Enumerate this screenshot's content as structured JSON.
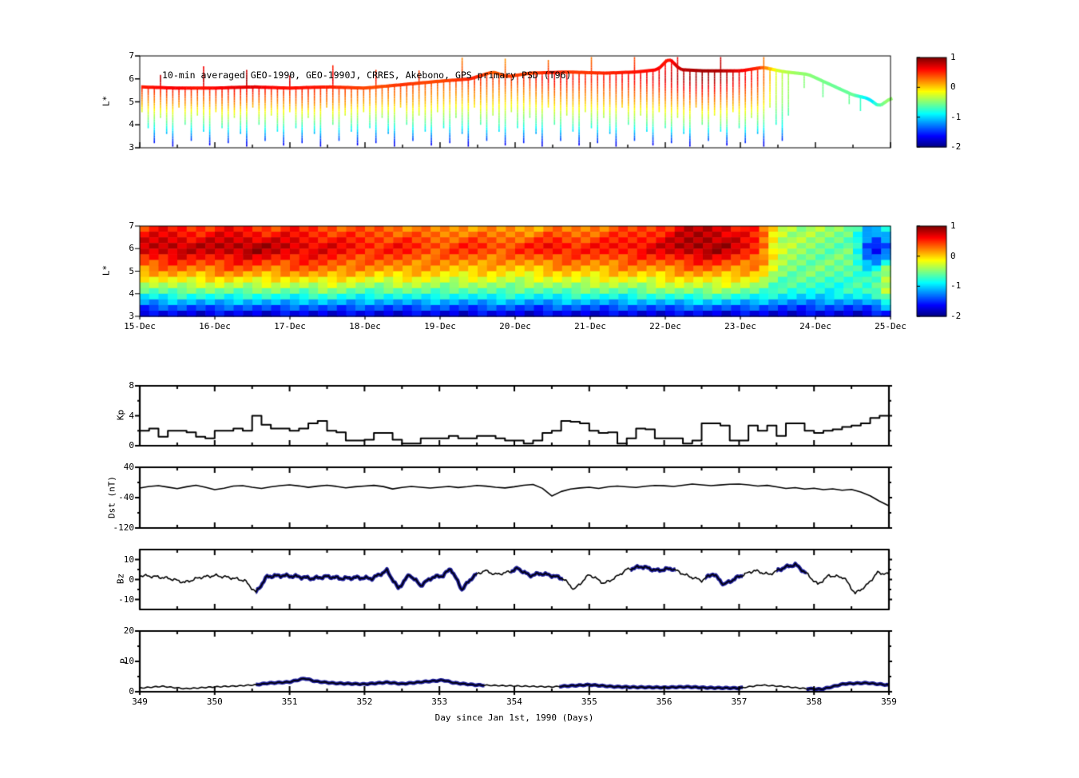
{
  "figure": {
    "background": "#ffffff"
  },
  "colorbar": {
    "vmin": -2,
    "vmax": 1,
    "ticks": [
      1,
      0,
      -1,
      -2
    ]
  },
  "xaxis": {
    "xlim": [
      349,
      359
    ],
    "ticks": [
      349,
      350,
      351,
      352,
      353,
      354,
      355,
      356,
      357,
      358,
      359
    ],
    "label": "Day since Jan 1st, 1990 (Days)"
  },
  "chart_data": [
    {
      "type": "scatter",
      "id": "psd_scatter",
      "title": "10-min averaged GEO-1990, GEO-1990J, CRRES, Akebono, GPS  primary PSD (T96)",
      "ylabel": "L*",
      "ylim": [
        3,
        7
      ],
      "yticks": [
        7,
        6,
        5,
        4,
        3
      ],
      "band": [
        [
          349,
          5.65
        ],
        [
          349.5,
          5.6
        ],
        [
          350,
          5.6
        ],
        [
          350.5,
          5.65
        ],
        [
          351,
          5.6
        ],
        [
          351.5,
          5.65
        ],
        [
          352,
          5.6
        ],
        [
          352.5,
          5.75
        ],
        [
          353,
          5.9
        ],
        [
          353.4,
          6.0
        ],
        [
          353.7,
          6.3
        ],
        [
          353.9,
          6.1
        ],
        [
          354.2,
          6.25
        ],
        [
          354.7,
          6.3
        ],
        [
          355.2,
          6.25
        ],
        [
          355.6,
          6.3
        ],
        [
          355.9,
          6.4
        ],
        [
          356.05,
          6.9
        ],
        [
          356.2,
          6.4
        ],
        [
          356.5,
          6.35
        ],
        [
          357,
          6.35
        ],
        [
          357.3,
          6.5
        ],
        [
          357.6,
          6.3
        ],
        [
          357.9,
          6.2
        ],
        [
          358.1,
          5.9
        ],
        [
          358.3,
          5.6
        ],
        [
          358.5,
          5.3
        ],
        [
          358.7,
          5.15
        ],
        [
          358.85,
          4.8
        ],
        [
          359,
          5.15
        ]
      ],
      "spike_start": 349.03,
      "spike_step": 0.082,
      "spike_end": 357.65,
      "depth_cycle": [
        4.55,
        3.85,
        3.2,
        4.3,
        3.6,
        3.05,
        4.75,
        4.0,
        3.3,
        4.4,
        3.7,
        3.1
      ],
      "up_cycle": [
        0.55,
        0.95,
        0.75
      ],
      "extra_spikes": [
        [
          357.85,
          5.6
        ],
        [
          358.1,
          5.2
        ],
        [
          358.45,
          4.9
        ],
        [
          358.6,
          4.6
        ]
      ]
    },
    {
      "type": "heatmap",
      "id": "psd_heatmap",
      "ylabel": "L*",
      "ylim": [
        3,
        7
      ],
      "yticks": [
        7,
        6,
        5,
        4,
        3
      ],
      "xticklabels": [
        "15-Dec",
        "16-Dec",
        "17-Dec",
        "18-Dec",
        "19-Dec",
        "20-Dec",
        "21-Dec",
        "22-Dec",
        "23-Dec",
        "24-Dec",
        "25-Dec"
      ],
      "t0": 349,
      "dt": 0.25,
      "anchor_L": [
        7,
        6,
        5,
        4,
        3
      ],
      "anchors": [
        [
          0.45,
          0.75,
          0.15,
          -0.75,
          -1.85
        ],
        [
          0.55,
          0.85,
          0.2,
          -0.7,
          -1.85
        ],
        [
          0.5,
          0.9,
          0.25,
          -0.65,
          -1.8
        ],
        [
          0.45,
          0.8,
          0.2,
          -0.7,
          -1.85
        ],
        [
          0.5,
          0.85,
          0.25,
          -0.6,
          -1.8
        ],
        [
          0.55,
          0.9,
          0.3,
          -0.65,
          -1.85
        ],
        [
          0.45,
          0.95,
          0.25,
          -0.7,
          -1.8
        ],
        [
          0.4,
          0.85,
          0.2,
          -0.6,
          -1.85
        ],
        [
          0.5,
          0.8,
          0.25,
          -0.65,
          -1.8
        ],
        [
          0.45,
          0.75,
          0.3,
          -0.7,
          -1.85
        ],
        [
          0.4,
          0.7,
          0.25,
          -0.6,
          -1.8
        ],
        [
          0.35,
          0.65,
          0.2,
          -0.65,
          -1.85
        ],
        [
          0.3,
          0.6,
          0.15,
          -0.7,
          -1.8
        ],
        [
          0.35,
          0.55,
          0.1,
          -0.75,
          -1.85
        ],
        [
          0.25,
          0.6,
          0.15,
          -0.7,
          -1.8
        ],
        [
          0.2,
          0.5,
          0.1,
          -0.65,
          -1.85
        ],
        [
          0.15,
          0.45,
          0.05,
          -0.7,
          -1.8
        ],
        [
          0.2,
          0.5,
          0,
          -0.75,
          -1.85
        ],
        [
          0.15,
          0.55,
          0.05,
          -0.7,
          -1.8
        ],
        [
          0.1,
          0.45,
          0,
          -0.65,
          -1.85
        ],
        [
          0.15,
          0.5,
          -0.05,
          -0.7,
          -1.8
        ],
        [
          0.1,
          0.55,
          0,
          -0.75,
          -1.85
        ],
        [
          0.2,
          0.7,
          0.05,
          -0.7,
          -1.8
        ],
        [
          0.15,
          0.6,
          0.1,
          -0.65,
          -1.85
        ],
        [
          0.25,
          0.55,
          0.05,
          -0.7,
          -1.8
        ],
        [
          0.3,
          0.6,
          0.1,
          -0.65,
          -1.85
        ],
        [
          0.35,
          0.65,
          0.15,
          -0.7,
          -1.8
        ],
        [
          0.4,
          0.7,
          0.1,
          -0.65,
          -1.85
        ],
        [
          0.5,
          0.75,
          0.15,
          -0.6,
          -1.8
        ],
        [
          0.7,
          0.9,
          0.2,
          -0.55,
          -1.85
        ],
        [
          0.8,
          0.95,
          0.25,
          -0.6,
          -1.8
        ],
        [
          0.75,
          0.9,
          0.2,
          -0.55,
          -1.85
        ],
        [
          0.6,
          0.7,
          0.15,
          -0.6,
          -1.8
        ],
        [
          0.4,
          0.55,
          0.1,
          -0.65,
          -1.85
        ],
        [
          -0.2,
          -0.3,
          -0.4,
          -0.8,
          -1.85
        ],
        [
          -0.35,
          -0.45,
          -0.5,
          -0.85,
          -1.8
        ],
        [
          -0.4,
          -0.5,
          -0.55,
          -0.8,
          -1.85
        ],
        [
          -0.45,
          -0.55,
          -0.6,
          -0.85,
          -1.8
        ],
        [
          -0.5,
          -0.6,
          -0.55,
          -0.8,
          -1.85
        ],
        [
          -1.1,
          -1.8,
          -0.9,
          -0.7,
          -1.8
        ],
        [
          -0.8,
          -1.3,
          -0.3,
          -0.15,
          -1.7
        ]
      ]
    },
    {
      "type": "line",
      "id": "kp",
      "ylabel": "Kp",
      "ylim": [
        0,
        8
      ],
      "yticks": [
        8,
        4,
        0
      ],
      "yminor": [
        6,
        2
      ],
      "step": true,
      "t0": 349,
      "dt": 0.125,
      "values": [
        2.0,
        2.3,
        1.2,
        2.0,
        2.0,
        1.8,
        1.2,
        1.0,
        2.0,
        2.0,
        2.3,
        2.0,
        4.0,
        2.8,
        2.3,
        2.3,
        2.0,
        2.3,
        3.0,
        3.3,
        2.0,
        1.8,
        0.7,
        0.7,
        0.8,
        1.7,
        1.7,
        0.8,
        0.3,
        0.3,
        1.0,
        1.0,
        1.0,
        1.3,
        1.0,
        1.0,
        1.3,
        1.3,
        1.0,
        0.7,
        0.7,
        0.3,
        0.7,
        1.7,
        2.0,
        3.3,
        3.2,
        3.0,
        2.0,
        1.7,
        1.8,
        0.3,
        1.0,
        2.3,
        2.2,
        1.0,
        1.0,
        1.0,
        0.3,
        0.7,
        3.0,
        3.0,
        2.7,
        0.7,
        0.7,
        2.7,
        2.0,
        2.7,
        1.3,
        3.0,
        3.0,
        2.0,
        1.7,
        2.0,
        2.2,
        2.5,
        2.7,
        3.0,
        3.7,
        4.0
      ]
    },
    {
      "type": "line",
      "id": "dst",
      "ylabel": "Dst (nT)",
      "ylim": [
        -120,
        40
      ],
      "yticks": [
        40,
        -40,
        -120
      ],
      "yminor": [
        0,
        -80
      ],
      "t0": 349,
      "dt": 0.125,
      "values": [
        -15,
        -11,
        -9,
        -13,
        -17,
        -12,
        -8,
        -13,
        -19,
        -15,
        -9,
        -8,
        -12,
        -15,
        -11,
        -8,
        -6,
        -9,
        -13,
        -10,
        -8,
        -11,
        -15,
        -12,
        -10,
        -8,
        -11,
        -17,
        -13,
        -10,
        -12,
        -14,
        -12,
        -10,
        -13,
        -11,
        -8,
        -10,
        -13,
        -15,
        -12,
        -8,
        -6,
        -16,
        -36,
        -24,
        -17,
        -14,
        -12,
        -15,
        -11,
        -9,
        -11,
        -13,
        -10,
        -8,
        -9,
        -11,
        -8,
        -5,
        -7,
        -9,
        -7,
        -5,
        -4,
        -6,
        -9,
        -7,
        -11,
        -15,
        -13,
        -17,
        -15,
        -19,
        -17,
        -21,
        -19,
        -26,
        -36,
        -50,
        -62
      ]
    },
    {
      "type": "line",
      "id": "bz",
      "ylabel": "Bz",
      "ylim": [
        -15,
        15
      ],
      "yticks": [
        10,
        0,
        -10
      ],
      "yminor": [
        5,
        -5
      ],
      "overlay_color": "#1c1c9c",
      "overlay": [
        [
          350.55,
          353.5
        ],
        [
          353.95,
          354.65
        ],
        [
          355.55,
          356.15
        ],
        [
          356.55,
          357.05
        ],
        [
          357.5,
          357.9
        ]
      ],
      "points": [
        [
          349,
          2
        ],
        [
          349.2,
          1.5
        ],
        [
          349.4,
          0.5
        ],
        [
          349.6,
          -1.5
        ],
        [
          349.8,
          1
        ],
        [
          350,
          2
        ],
        [
          350.2,
          1
        ],
        [
          350.4,
          -0.5
        ],
        [
          350.55,
          -6.5
        ],
        [
          350.7,
          1.5
        ],
        [
          350.9,
          2
        ],
        [
          351.1,
          1.5
        ],
        [
          351.3,
          0.5
        ],
        [
          351.5,
          1.5
        ],
        [
          351.7,
          0.5
        ],
        [
          351.9,
          1
        ],
        [
          352.1,
          0.5
        ],
        [
          352.3,
          4.5
        ],
        [
          352.45,
          -4.5
        ],
        [
          352.6,
          2.5
        ],
        [
          352.75,
          -3
        ],
        [
          352.9,
          1
        ],
        [
          353.05,
          2
        ],
        [
          353.15,
          5.5
        ],
        [
          353.3,
          -5
        ],
        [
          353.45,
          1.5
        ],
        [
          353.6,
          4.5
        ],
        [
          353.75,
          2.5
        ],
        [
          353.9,
          3.5
        ],
        [
          354.05,
          5.5
        ],
        [
          354.2,
          2
        ],
        [
          354.35,
          3
        ],
        [
          354.5,
          2
        ],
        [
          354.65,
          0.5
        ],
        [
          354.8,
          -5
        ],
        [
          355,
          2.5
        ],
        [
          355.2,
          -2
        ],
        [
          355.35,
          1
        ],
        [
          355.5,
          5
        ],
        [
          355.7,
          6.5
        ],
        [
          355.9,
          4.5
        ],
        [
          356.1,
          5.5
        ],
        [
          356.3,
          2
        ],
        [
          356.5,
          -0.5
        ],
        [
          356.65,
          3
        ],
        [
          356.8,
          -2.5
        ],
        [
          357,
          1.5
        ],
        [
          357.2,
          4.5
        ],
        [
          357.4,
          2.5
        ],
        [
          357.6,
          6
        ],
        [
          357.75,
          7.5
        ],
        [
          357.9,
          3
        ],
        [
          358.05,
          -2.5
        ],
        [
          358.2,
          2
        ],
        [
          358.4,
          1
        ],
        [
          358.55,
          -7
        ],
        [
          358.7,
          -3
        ],
        [
          358.85,
          3.5
        ],
        [
          359,
          2.5
        ]
      ]
    },
    {
      "type": "line",
      "id": "p",
      "ylabel": "P",
      "ylim": [
        0,
        20
      ],
      "yticks": [
        20,
        10,
        0
      ],
      "yminor": [
        15,
        5
      ],
      "overlay_color": "#1c1c9c",
      "overlay": [
        [
          350.55,
          353.6
        ],
        [
          354.6,
          357.05
        ],
        [
          357.9,
          359
        ]
      ],
      "points": [
        [
          349,
          1.2
        ],
        [
          349.3,
          1.8
        ],
        [
          349.6,
          1.0
        ],
        [
          350,
          1.6
        ],
        [
          350.3,
          1.9
        ],
        [
          350.55,
          2.3
        ],
        [
          350.7,
          2.8
        ],
        [
          351.0,
          3.2
        ],
        [
          351.2,
          4.4
        ],
        [
          351.35,
          3.4
        ],
        [
          351.6,
          2.8
        ],
        [
          352,
          2.5
        ],
        [
          352.3,
          3.1
        ],
        [
          352.5,
          2.6
        ],
        [
          352.8,
          3.3
        ],
        [
          353.05,
          3.8
        ],
        [
          353.2,
          2.9
        ],
        [
          353.5,
          2.2
        ],
        [
          354,
          1.9
        ],
        [
          354.5,
          1.6
        ],
        [
          355,
          2.3
        ],
        [
          355.3,
          1.7
        ],
        [
          355.6,
          1.5
        ],
        [
          356,
          1.4
        ],
        [
          356.3,
          1.6
        ],
        [
          356.6,
          1.3
        ],
        [
          357,
          1.2
        ],
        [
          357.3,
          2.2
        ],
        [
          357.6,
          1.7
        ],
        [
          357.9,
          1.0
        ],
        [
          358.1,
          0.8
        ],
        [
          358.4,
          2.6
        ],
        [
          358.7,
          2.9
        ],
        [
          359,
          2.2
        ]
      ]
    }
  ]
}
